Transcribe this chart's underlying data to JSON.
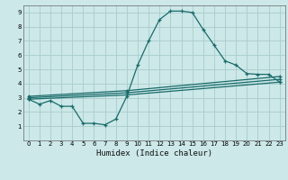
{
  "title": "",
  "xlabel": "Humidex (Indice chaleur)",
  "bg_color": "#cce8e8",
  "grid_color": "#aacccc",
  "line_color": "#1a6b6b",
  "xlim": [
    -0.5,
    23.5
  ],
  "ylim": [
    0,
    9.5
  ],
  "xticks": [
    0,
    1,
    2,
    3,
    4,
    5,
    6,
    7,
    8,
    9,
    10,
    11,
    12,
    13,
    14,
    15,
    16,
    17,
    18,
    19,
    20,
    21,
    22,
    23
  ],
  "yticks": [
    1,
    2,
    3,
    4,
    5,
    6,
    7,
    8,
    9
  ],
  "line1_x": [
    0,
    1,
    2,
    3,
    4,
    5,
    6,
    7,
    8,
    9,
    10,
    11,
    12,
    13,
    14,
    15,
    16,
    17,
    18,
    19,
    20,
    21,
    22,
    23
  ],
  "line1_y": [
    2.9,
    2.55,
    2.8,
    2.4,
    2.4,
    1.2,
    1.2,
    1.1,
    1.5,
    3.1,
    5.3,
    7.0,
    8.5,
    9.1,
    9.1,
    9.0,
    7.8,
    6.7,
    5.6,
    5.3,
    4.7,
    4.65,
    4.65,
    4.1
  ],
  "line2_x": [
    0,
    9,
    23
  ],
  "line2_y": [
    2.9,
    3.2,
    4.1
  ],
  "line3_x": [
    0,
    9,
    23
  ],
  "line3_y": [
    3.0,
    3.35,
    4.3
  ],
  "line4_x": [
    0,
    9,
    23
  ],
  "line4_y": [
    3.1,
    3.5,
    4.5
  ]
}
